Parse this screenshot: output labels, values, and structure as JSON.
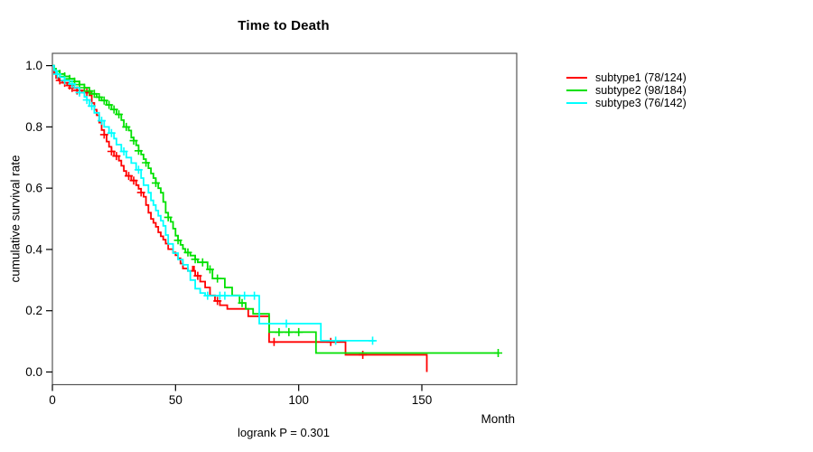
{
  "figure": {
    "background": "#ffffff",
    "box_color": "#555555",
    "axis_color": "#000000"
  },
  "chart_data": {
    "type": "line",
    "subtype": "kaplan-meier-step-curves",
    "title": "Time to Death",
    "xlabel": "Month",
    "ylabel": "cumulative survival rate",
    "annotation": "logrank P = 0.301",
    "x_ticks": [
      0,
      50,
      100,
      150
    ],
    "y_ticks": [
      0.0,
      0.2,
      0.4,
      0.6,
      0.8,
      1.0
    ],
    "xlim": [
      0,
      188
    ],
    "ylim": [
      0,
      1
    ],
    "grid": false,
    "legend_position": "right-outside",
    "censor_marker": "plus",
    "series": [
      {
        "name": "subtype1 (78/124)",
        "color": "#ff0000",
        "events_total": "78/124",
        "steps": [
          [
            0,
            1.0
          ],
          [
            0.7,
            0.976
          ],
          [
            1.5,
            0.96
          ],
          [
            2.5,
            0.952
          ],
          [
            4,
            0.944
          ],
          [
            6,
            0.935
          ],
          [
            8,
            0.927
          ],
          [
            10,
            0.919
          ],
          [
            12,
            0.912
          ],
          [
            15,
            0.903
          ],
          [
            16,
            0.878
          ],
          [
            17,
            0.856
          ],
          [
            18,
            0.838
          ],
          [
            19,
            0.814
          ],
          [
            20,
            0.79
          ],
          [
            21,
            0.775
          ],
          [
            22,
            0.752
          ],
          [
            23,
            0.735
          ],
          [
            24,
            0.72
          ],
          [
            25,
            0.705
          ],
          [
            27,
            0.69
          ],
          [
            28,
            0.673
          ],
          [
            29,
            0.656
          ],
          [
            30,
            0.64
          ],
          [
            32,
            0.625
          ],
          [
            34,
            0.61
          ],
          [
            35,
            0.598
          ],
          [
            36,
            0.586
          ],
          [
            37,
            0.572
          ],
          [
            38,
            0.545
          ],
          [
            39,
            0.52
          ],
          [
            40,
            0.5
          ],
          [
            41,
            0.487
          ],
          [
            42,
            0.474
          ],
          [
            43,
            0.456
          ],
          [
            44,
            0.443
          ],
          [
            45,
            0.432
          ],
          [
            46,
            0.419
          ],
          [
            47,
            0.401
          ],
          [
            49,
            0.39
          ],
          [
            50,
            0.381
          ],
          [
            51,
            0.371
          ],
          [
            52,
            0.354
          ],
          [
            53,
            0.338
          ],
          [
            55,
            0.33
          ],
          [
            57,
            0.344
          ],
          [
            57.5,
            0.33
          ],
          [
            58,
            0.314
          ],
          [
            60,
            0.295
          ],
          [
            62,
            0.276
          ],
          [
            64,
            0.25
          ],
          [
            66,
            0.232
          ],
          [
            68,
            0.218
          ],
          [
            71,
            0.206
          ],
          [
            79.5,
            0.182
          ],
          [
            88,
            0.098
          ],
          [
            119,
            0.056
          ],
          [
            152,
            0
          ]
        ],
        "censors": [
          3,
          5,
          7,
          8,
          10,
          11,
          13,
          14,
          21,
          24,
          26,
          31,
          33,
          36,
          59,
          67,
          90,
          113,
          126
        ]
      },
      {
        "name": "subtype2 (98/184)",
        "color": "#00e000",
        "events_total": "98/184",
        "steps": [
          [
            0,
            1.0
          ],
          [
            0.7,
            0.99
          ],
          [
            1.5,
            0.982
          ],
          [
            3,
            0.973
          ],
          [
            5,
            0.965
          ],
          [
            7,
            0.957
          ],
          [
            9,
            0.948
          ],
          [
            11,
            0.938
          ],
          [
            13,
            0.928
          ],
          [
            15,
            0.917
          ],
          [
            16,
            0.908
          ],
          [
            18,
            0.897
          ],
          [
            20,
            0.886
          ],
          [
            22,
            0.872
          ],
          [
            24,
            0.857
          ],
          [
            26,
            0.841
          ],
          [
            28,
            0.822
          ],
          [
            29,
            0.8
          ],
          [
            31,
            0.788
          ],
          [
            32,
            0.765
          ],
          [
            33,
            0.755
          ],
          [
            34,
            0.74
          ],
          [
            35,
            0.722
          ],
          [
            36,
            0.71
          ],
          [
            37,
            0.695
          ],
          [
            38,
            0.683
          ],
          [
            39,
            0.665
          ],
          [
            40,
            0.648
          ],
          [
            41,
            0.633
          ],
          [
            42,
            0.617
          ],
          [
            43,
            0.6
          ],
          [
            44,
            0.585
          ],
          [
            45,
            0.555
          ],
          [
            46,
            0.52
          ],
          [
            47,
            0.505
          ],
          [
            48,
            0.49
          ],
          [
            49,
            0.468
          ],
          [
            50,
            0.445
          ],
          [
            51,
            0.43
          ],
          [
            52,
            0.415
          ],
          [
            53,
            0.402
          ],
          [
            54,
            0.39
          ],
          [
            56,
            0.38
          ],
          [
            58,
            0.368
          ],
          [
            59,
            0.358
          ],
          [
            63,
            0.335
          ],
          [
            65,
            0.305
          ],
          [
            70,
            0.276
          ],
          [
            73,
            0.25
          ],
          [
            76,
            0.225
          ],
          [
            78.5,
            0.206
          ],
          [
            81.5,
            0.19
          ],
          [
            88,
            0.13
          ],
          [
            107,
            0.062
          ],
          [
            181,
            0.062
          ]
        ],
        "censors": [
          3,
          5,
          7,
          9,
          11,
          13,
          15,
          17,
          19,
          21,
          23,
          25,
          27,
          30,
          33,
          35,
          38,
          42,
          47,
          51,
          55,
          58,
          61,
          64,
          67,
          77,
          92,
          96,
          100,
          181
        ]
      },
      {
        "name": "subtype3 (76/142)",
        "color": "#00ffff",
        "events_total": "76/142",
        "steps": [
          [
            0,
            1.0
          ],
          [
            0.7,
            0.985
          ],
          [
            1.5,
            0.972
          ],
          [
            3,
            0.962
          ],
          [
            5,
            0.952
          ],
          [
            7,
            0.94
          ],
          [
            9,
            0.928
          ],
          [
            11,
            0.912
          ],
          [
            13,
            0.898
          ],
          [
            14,
            0.888
          ],
          [
            15,
            0.868
          ],
          [
            17,
            0.846
          ],
          [
            19,
            0.82
          ],
          [
            21,
            0.8
          ],
          [
            23,
            0.78
          ],
          [
            25,
            0.762
          ],
          [
            26,
            0.742
          ],
          [
            28,
            0.72
          ],
          [
            30,
            0.7
          ],
          [
            32,
            0.682
          ],
          [
            34,
            0.66
          ],
          [
            36,
            0.633
          ],
          [
            37,
            0.61
          ],
          [
            39,
            0.585
          ],
          [
            40,
            0.56
          ],
          [
            41,
            0.545
          ],
          [
            42,
            0.527
          ],
          [
            43,
            0.51
          ],
          [
            44,
            0.494
          ],
          [
            45,
            0.477
          ],
          [
            46,
            0.447
          ],
          [
            47,
            0.418
          ],
          [
            49,
            0.388
          ],
          [
            51,
            0.367
          ],
          [
            53,
            0.35
          ],
          [
            55,
            0.33
          ],
          [
            56,
            0.3
          ],
          [
            58,
            0.272
          ],
          [
            60,
            0.258
          ],
          [
            62,
            0.249
          ],
          [
            84,
            0.158
          ],
          [
            109,
            0.102
          ],
          [
            131,
            0.102
          ]
        ],
        "censors": [
          2,
          5,
          8,
          11,
          14,
          16,
          20,
          24,
          29,
          35,
          63,
          68,
          70,
          78,
          82,
          95,
          115,
          130
        ]
      }
    ]
  }
}
